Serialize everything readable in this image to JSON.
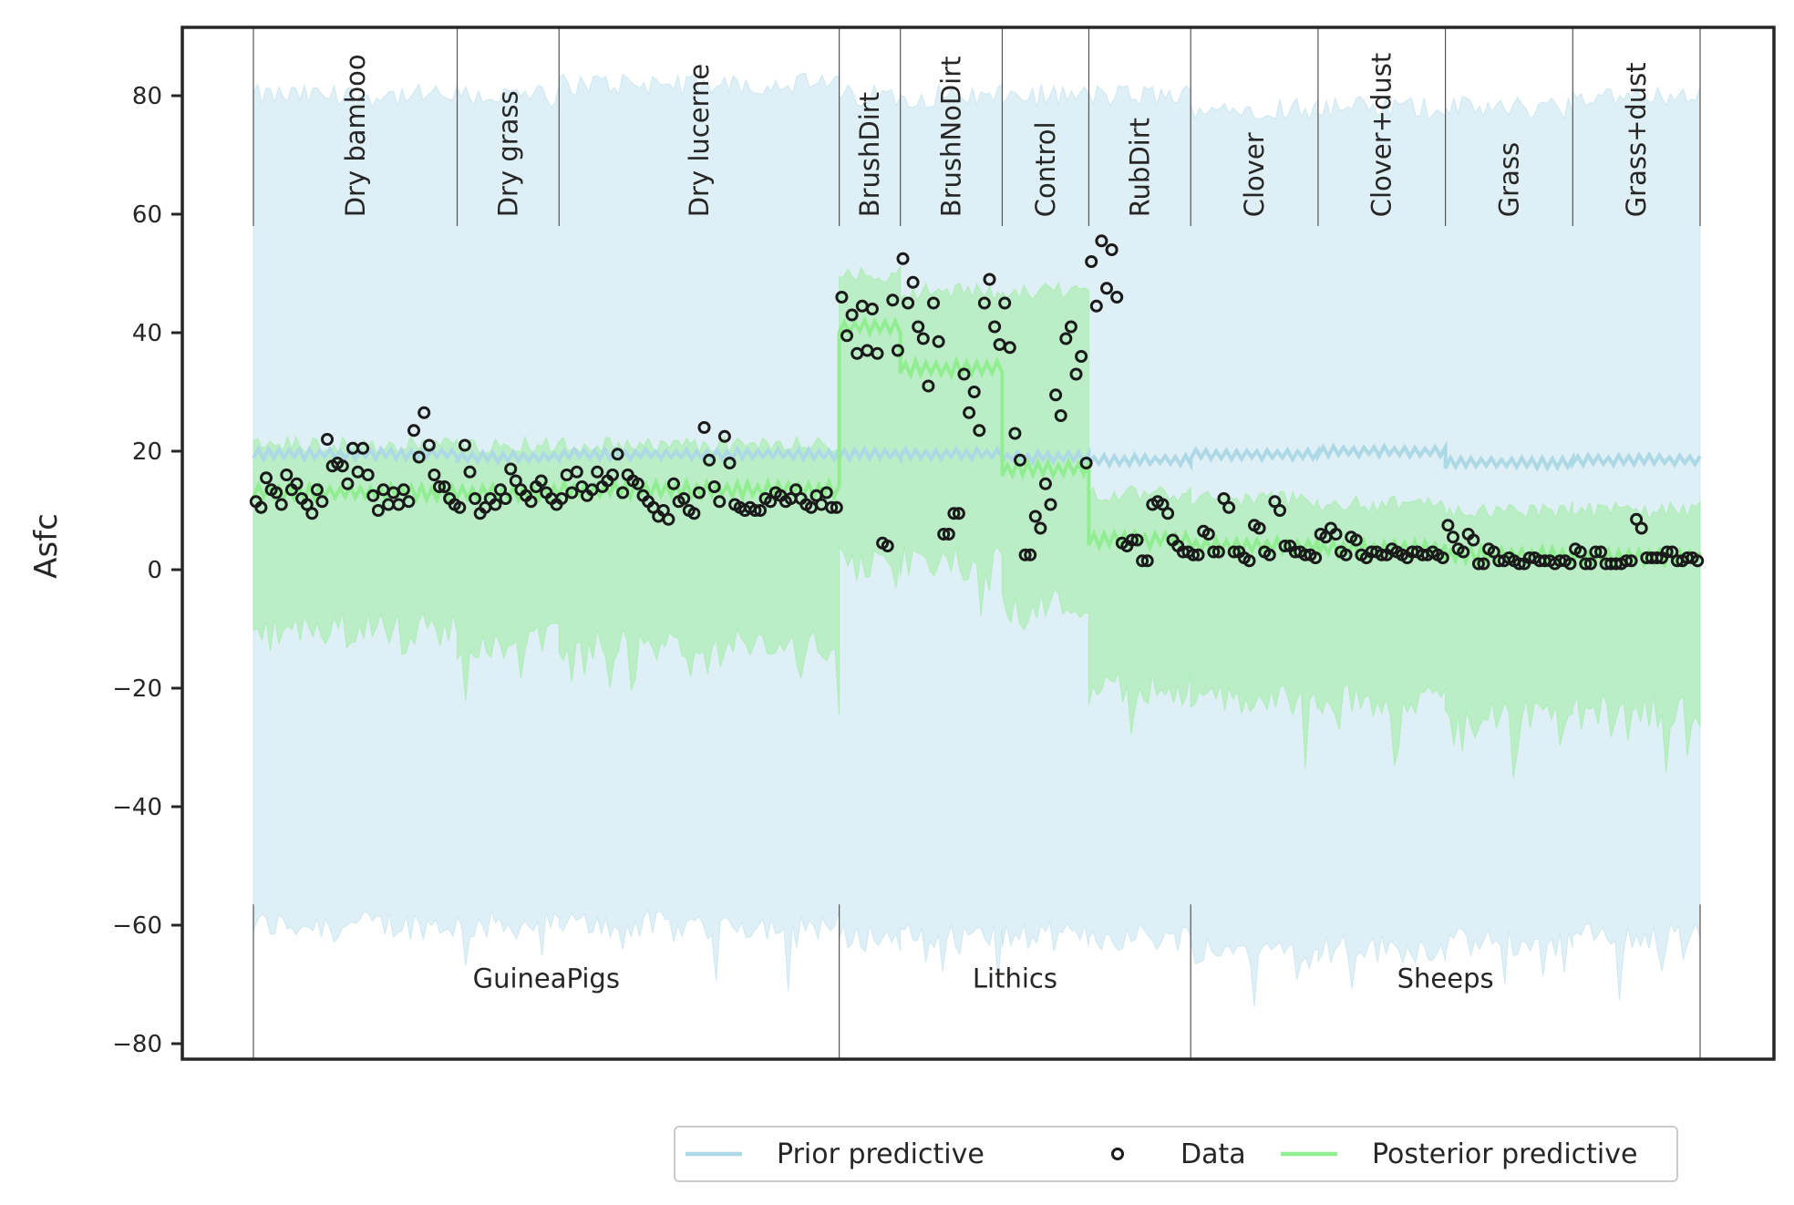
{
  "chart_data": {
    "type": "scatter",
    "ylabel": "Asfc",
    "xlabel": "",
    "ylim": [
      -80,
      90
    ],
    "yticks": [
      80,
      60,
      40,
      20,
      0,
      -20,
      -40,
      -60,
      -80
    ],
    "ytick_labels": [
      "80",
      "60",
      "40",
      "20",
      "0",
      "−20",
      "−40",
      "−60",
      "−80"
    ],
    "groups": [
      {
        "name": "GuineaPigs",
        "categories": [
          "Dry bamboo",
          "Dry grass",
          "Dry lucerne"
        ]
      },
      {
        "name": "Lithics",
        "categories": [
          "BrushDirt",
          "BrushNoDirt",
          "Control",
          "RubDirt"
        ]
      },
      {
        "name": "Sheeps",
        "categories": [
          "Clover",
          "Clover+dust",
          "Grass",
          "Grass+dust"
        ]
      }
    ],
    "categories": [
      {
        "name": "Dry bamboo",
        "n": 40,
        "prior_mean": 19.5,
        "prior_lo": -60,
        "prior_hi": 80,
        "post_mean": 13,
        "post_lo": -10,
        "post_hi": 21,
        "data": [
          11.5,
          10.5,
          15.5,
          13.5,
          13,
          11,
          16,
          13.5,
          14.5,
          12,
          11,
          9.5,
          13.5,
          11.5,
          22,
          17.5,
          18,
          17.5,
          14.5,
          20.5,
          16.5,
          20.5,
          16,
          12.5,
          10,
          13.5,
          11,
          13,
          11,
          13.5,
          11.5,
          23.5,
          19,
          26.5,
          21,
          16,
          14,
          14,
          12,
          11
        ]
      },
      {
        "name": "Dry grass",
        "n": 20,
        "prior_mean": 19,
        "prior_lo": -60,
        "prior_hi": 80,
        "post_mean": 13,
        "post_lo": -12,
        "post_hi": 21,
        "data": [
          10.5,
          21,
          16.5,
          12,
          9.5,
          10.5,
          12,
          11,
          13.5,
          12,
          17,
          15,
          13.5,
          12.5,
          11.5,
          14,
          15,
          13,
          12,
          11
        ]
      },
      {
        "name": "Dry lucerne",
        "n": 55,
        "prior_mean": 19.5,
        "prior_lo": -60,
        "prior_hi": 82,
        "post_mean": 13.5,
        "post_lo": -13,
        "post_hi": 21,
        "data": [
          12,
          16,
          13,
          16.5,
          14,
          12.5,
          13.5,
          16.5,
          14,
          15,
          16,
          19.5,
          13,
          16,
          15,
          14.5,
          12.5,
          11.5,
          10.5,
          9,
          10,
          8.5,
          14.5,
          11.5,
          12,
          10,
          9.5,
          13,
          24,
          18.5,
          14,
          11.5,
          22.5,
          18,
          11,
          10.5,
          10,
          10.5,
          10,
          10,
          12,
          11.5,
          13,
          12.5,
          11.5,
          12,
          13.5,
          12,
          11,
          10.5,
          12.5,
          11,
          13,
          10.5,
          10.5
        ]
      },
      {
        "name": "BrushDirt",
        "n": 12,
        "prior_mean": 19.5,
        "prior_lo": -62,
        "prior_hi": 80,
        "post_mean": 41,
        "post_lo": 1,
        "post_hi": 50,
        "data": [
          46,
          39.5,
          43,
          36.5,
          44.5,
          37,
          44,
          36.5,
          4.5,
          4,
          45.5,
          37
        ]
      },
      {
        "name": "BrushNoDirt",
        "n": 20,
        "prior_mean": 19.5,
        "prior_lo": -62,
        "prior_hi": 80,
        "post_mean": 34,
        "post_lo": 1,
        "post_hi": 47,
        "data": [
          52.5,
          45,
          48.5,
          41,
          39,
          31,
          45,
          38.5,
          6,
          6,
          9.5,
          9.5,
          33,
          26.5,
          30,
          23.5,
          45,
          49,
          41,
          38
        ]
      },
      {
        "name": "Control",
        "n": 17,
        "prior_mean": 19,
        "prior_lo": -62,
        "prior_hi": 80,
        "post_mean": 17,
        "post_lo": -6,
        "post_hi": 47,
        "data": [
          45,
          37.5,
          23,
          18.5,
          2.5,
          2.5,
          9,
          7,
          14.5,
          11,
          29.5,
          26,
          39,
          41,
          33,
          36,
          18
        ]
      },
      {
        "name": "RubDirt",
        "n": 20,
        "prior_mean": 18.5,
        "prior_lo": -62,
        "prior_hi": 80,
        "post_mean": 5,
        "post_lo": -20,
        "post_hi": 13,
        "data": [
          52,
          44.5,
          55.5,
          47.5,
          54,
          46,
          4.5,
          4,
          5,
          5,
          1.5,
          1.5,
          11,
          11.5,
          11,
          9.5,
          5,
          4,
          3,
          3
        ]
      },
      {
        "name": "Clover",
        "n": 25,
        "prior_mean": 19.5,
        "prior_lo": -64,
        "prior_hi": 78,
        "post_mean": 4,
        "post_lo": -22,
        "post_hi": 12,
        "data": [
          2.5,
          2.5,
          6.5,
          6,
          3,
          3,
          12,
          10.5,
          3,
          3,
          2,
          1.5,
          7.5,
          7,
          3,
          2.5,
          11.5,
          10,
          4,
          4,
          3,
          3,
          2.5,
          2.5,
          2
        ]
      },
      {
        "name": "Clover+dust",
        "n": 25,
        "prior_mean": 20,
        "prior_lo": -64,
        "prior_hi": 78,
        "post_mean": 3.5,
        "post_lo": -22,
        "post_hi": 11,
        "data": [
          6,
          5.5,
          7,
          6,
          3,
          2.5,
          5.5,
          5,
          2.5,
          2,
          3,
          3,
          2.5,
          2.5,
          3.5,
          3,
          2.5,
          2,
          3,
          3,
          2.5,
          2.5,
          3,
          2.5,
          2
        ]
      },
      {
        "name": "Grass",
        "n": 25,
        "prior_mean": 18,
        "prior_lo": -63,
        "prior_hi": 78,
        "post_mean": 2.5,
        "post_lo": -24,
        "post_hi": 10,
        "data": [
          7.5,
          5.5,
          3.5,
          3,
          6,
          5,
          1,
          1,
          3.5,
          3,
          1.5,
          1.5,
          2,
          1.5,
          1,
          1,
          2,
          2,
          1.5,
          1.5,
          1.5,
          1,
          1.5,
          1.5,
          1
        ]
      },
      {
        "name": "Grass+dust",
        "n": 25,
        "prior_mean": 18.5,
        "prior_lo": -62,
        "prior_hi": 80,
        "post_mean": 2,
        "post_lo": -24,
        "post_hi": 10,
        "data": [
          3.5,
          3,
          1,
          1,
          3,
          3,
          1,
          1,
          1,
          1,
          1.5,
          1.5,
          8.5,
          7,
          2,
          2,
          2,
          2,
          3,
          3,
          1.5,
          1.5,
          2,
          2,
          1.5
        ]
      }
    ],
    "legend": {
      "placement": "bottom-right",
      "entries": [
        {
          "label": "Prior predictive",
          "marker": "line",
          "color": "#add8e6"
        },
        {
          "label": "Data",
          "marker": "circle",
          "color": "#1a1a1a"
        },
        {
          "label": "Posterior predictive",
          "marker": "line",
          "color": "#90ee90"
        }
      ]
    },
    "colors": {
      "prior_band": "#add8e6",
      "prior_line": "#add8e6",
      "post_band": "#90ee90",
      "post_line": "#90ee90",
      "data_marker": "#1a1a1a",
      "axes": "#262626",
      "separator": "#555555"
    },
    "grid": false
  }
}
